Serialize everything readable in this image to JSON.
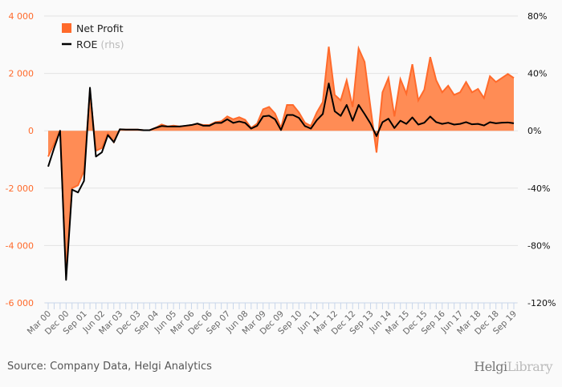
{
  "chart_data": {
    "type": "area",
    "title": "",
    "categories": [
      "Mar 00",
      "Jun 00",
      "Sep 00",
      "Dec 00",
      "Mar 01",
      "Jun 01",
      "Sep 01",
      "Dec 01",
      "Mar 02",
      "Jun 02",
      "Sep 02",
      "Dec 02",
      "Mar 03",
      "Jun 03",
      "Sep 03",
      "Dec 03",
      "Mar 04",
      "Jun 04",
      "Sep 04",
      "Dec 04",
      "Mar 05",
      "Jun 05",
      "Sep 05",
      "Dec 05",
      "Mar 06",
      "Jun 06",
      "Sep 06",
      "Dec 06",
      "Mar 07",
      "Jun 07",
      "Sep 07",
      "Dec 07",
      "Mar 08",
      "Jun 08",
      "Sep 08",
      "Dec 08",
      "Mar 09",
      "Jun 09",
      "Sep 09",
      "Dec 09",
      "Mar 10",
      "Jun 10",
      "Sep 10",
      "Dec 10",
      "Mar 11",
      "Jun 11",
      "Sep 11",
      "Dec 11",
      "Mar 12",
      "Jun 12",
      "Sep 12",
      "Dec 12",
      "Mar 13",
      "Jun 13",
      "Sep 13",
      "Dec 13",
      "Mar 14",
      "Jun 14",
      "Sep 14",
      "Dec 14",
      "Mar 15",
      "Jun 15",
      "Sep 15",
      "Dec 15",
      "Mar 16",
      "Jun 16",
      "Sep 16",
      "Dec 16",
      "Mar 17",
      "Jun 17",
      "Sep 17",
      "Dec 17",
      "Mar 18",
      "Jun 18",
      "Sep 18",
      "Dec 18",
      "Mar 19",
      "Jun 19",
      "Sep 19"
    ],
    "tick_labels": [
      "Mar 00",
      "Dec 00",
      "Sep 01",
      "Jun 02",
      "Mar 03",
      "Dec 03",
      "Sep 04",
      "Jun 05",
      "Mar 06",
      "Dec 06",
      "Sep 07",
      "Jun 08",
      "Mar 09",
      "Dec 09",
      "Sep 10",
      "Jun 11",
      "Mar 12",
      "Dec 12",
      "Sep 13",
      "Jun 14",
      "Mar 15",
      "Dec 15",
      "Sep 16",
      "Jun 17",
      "Mar 18",
      "Dec 18",
      "Sep 19"
    ],
    "series": [
      {
        "name": "Net Profit",
        "axis": "left",
        "type": "area",
        "color": "#ff6a2b",
        "values": [
          -900,
          -450,
          0,
          -5000,
          -2000,
          -1900,
          -1400,
          1400,
          -700,
          -600,
          -100,
          -400,
          50,
          40,
          40,
          40,
          20,
          20,
          100,
          220,
          150,
          180,
          150,
          170,
          200,
          250,
          200,
          200,
          300,
          330,
          500,
          400,
          470,
          380,
          100,
          250,
          750,
          830,
          600,
          100,
          900,
          900,
          640,
          280,
          170,
          640,
          1000,
          2930,
          1250,
          1060,
          1760,
          830,
          2870,
          2400,
          800,
          -760,
          1340,
          1840,
          500,
          1800,
          1290,
          2320,
          1060,
          1430,
          2570,
          1760,
          1340,
          1570,
          1250,
          1340,
          1700,
          1340,
          1460,
          1140,
          1900,
          1700,
          1840,
          1980,
          1840
        ]
      },
      {
        "name": "ROE",
        "suffix": "(rhs)",
        "axis": "right",
        "type": "line",
        "color": "#000000",
        "values": [
          -25,
          -12,
          0,
          -104,
          -41,
          -43,
          -35,
          30,
          -18,
          -15,
          -3,
          -8,
          1,
          0.8,
          0.8,
          0.8,
          0.4,
          0.4,
          2,
          3.3,
          3,
          3,
          3,
          3.5,
          4,
          5,
          3.5,
          3.5,
          5.5,
          5.5,
          8,
          5.5,
          6.5,
          5.5,
          1.5,
          3.5,
          10,
          10.5,
          8,
          0.5,
          11,
          11,
          9,
          3.3,
          1.5,
          7.4,
          11.7,
          33,
          13.6,
          10.4,
          18,
          7,
          18,
          11.7,
          5,
          -3.7,
          6,
          8.4,
          1.9,
          7,
          4.8,
          9.3,
          4.3,
          5.6,
          9.9,
          6,
          4.8,
          5.6,
          4.3,
          4.8,
          6,
          4.5,
          4.8,
          3.7,
          6,
          5.2,
          5.6,
          5.8,
          5.2
        ]
      }
    ],
    "left_axis": {
      "ylim": [
        -6000,
        4000
      ],
      "ticks": [
        4000,
        2000,
        0,
        -2000,
        -4000,
        -6000
      ],
      "tick_labels": [
        "4 000",
        "2 000",
        "0",
        "-2 000",
        "-4 000",
        "-6 000"
      ],
      "color": "#ff6a2b"
    },
    "right_axis": {
      "ylim": [
        -120,
        80
      ],
      "ticks": [
        80,
        40,
        0,
        -40,
        -80,
        -120
      ],
      "tick_labels": [
        "80%",
        "40%",
        "0%",
        "-40%",
        "-80%",
        "-120%"
      ]
    },
    "legend": {
      "position": "top-left",
      "items": [
        "Net Profit",
        "ROE"
      ],
      "rhs_note": "(rhs)"
    },
    "grid": true
  },
  "footer": {
    "source": "Source: Company Data, Helgi Analytics",
    "logo_a": "Helgi",
    "logo_b": "Library"
  }
}
